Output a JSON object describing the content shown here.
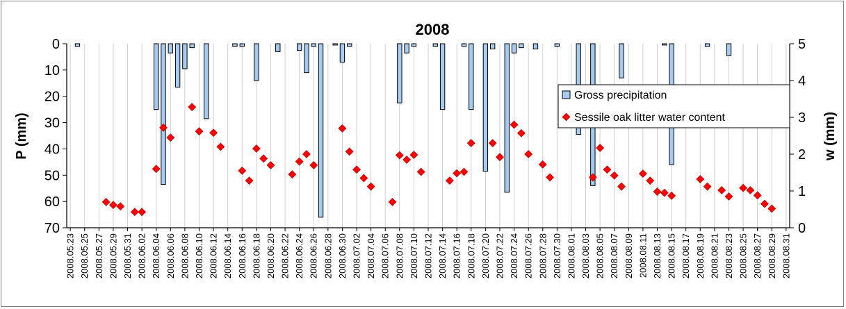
{
  "chart_data": {
    "type": "bar+scatter",
    "title": "2008",
    "left_axis": {
      "label": "P (mm)",
      "min": 0,
      "max": 70,
      "step": 10,
      "inverted": true
    },
    "right_axis": {
      "label": "w (mm)",
      "min": 0,
      "max": 5,
      "step": 1
    },
    "x_axis": {
      "type": "date",
      "start": "2008-05-23",
      "end": "2008-08-31",
      "tick_interval_days": 2
    },
    "legend": {
      "placement": "center-right"
    },
    "grid": {
      "vertical": true,
      "horizontal": false
    },
    "colors": {
      "bars": "#a6caf0",
      "bar_outline": "#000000",
      "markers": "#ff0000",
      "grid": "#d0d0d0"
    },
    "series": [
      {
        "name": "Gross precipitation",
        "type": "bar",
        "axis": "left",
        "points": [
          [
            "2008-05-24",
            1
          ],
          [
            "2008-06-04",
            25
          ],
          [
            "2008-06-05",
            53.5
          ],
          [
            "2008-06-06",
            3.5
          ],
          [
            "2008-06-07",
            16.5
          ],
          [
            "2008-06-08",
            9.5
          ],
          [
            "2008-06-09",
            1.5
          ],
          [
            "2008-06-11",
            28.5
          ],
          [
            "2008-06-15",
            1
          ],
          [
            "2008-06-16",
            1
          ],
          [
            "2008-06-18",
            14
          ],
          [
            "2008-06-21",
            3
          ],
          [
            "2008-06-24",
            2.5
          ],
          [
            "2008-06-25",
            11
          ],
          [
            "2008-06-26",
            1
          ],
          [
            "2008-06-27",
            66
          ],
          [
            "2008-06-29",
            0.5
          ],
          [
            "2008-06-30",
            7
          ],
          [
            "2008-07-01",
            1
          ],
          [
            "2008-07-08",
            22.5
          ],
          [
            "2008-07-09",
            3.5
          ],
          [
            "2008-07-10",
            1
          ],
          [
            "2008-07-13",
            1
          ],
          [
            "2008-07-14",
            25
          ],
          [
            "2008-07-17",
            1
          ],
          [
            "2008-07-18",
            25
          ],
          [
            "2008-07-20",
            48.5
          ],
          [
            "2008-07-21",
            2
          ],
          [
            "2008-07-23",
            56.5
          ],
          [
            "2008-07-24",
            3.5
          ],
          [
            "2008-07-25",
            1.5
          ],
          [
            "2008-07-27",
            2
          ],
          [
            "2008-07-30",
            1
          ],
          [
            "2008-08-02",
            34.5
          ],
          [
            "2008-08-04",
            54
          ],
          [
            "2008-08-08",
            13
          ],
          [
            "2008-08-14",
            0.5
          ],
          [
            "2008-08-15",
            46
          ],
          [
            "2008-08-20",
            1
          ],
          [
            "2008-08-23",
            4.5
          ]
        ]
      },
      {
        "name": "Sessile oak litter water content",
        "type": "scatter",
        "axis": "right",
        "points": [
          [
            "2008-05-28",
            0.7
          ],
          [
            "2008-05-29",
            0.62
          ],
          [
            "2008-05-30",
            0.58
          ],
          [
            "2008-06-01",
            0.43
          ],
          [
            "2008-06-02",
            0.43
          ],
          [
            "2008-06-04",
            1.6
          ],
          [
            "2008-06-05",
            2.72
          ],
          [
            "2008-06-06",
            2.45
          ],
          [
            "2008-06-09",
            3.28
          ],
          [
            "2008-06-10",
            2.62
          ],
          [
            "2008-06-12",
            2.58
          ],
          [
            "2008-06-13",
            2.2
          ],
          [
            "2008-06-16",
            1.55
          ],
          [
            "2008-06-17",
            1.28
          ],
          [
            "2008-06-18",
            2.15
          ],
          [
            "2008-06-19",
            1.88
          ],
          [
            "2008-06-20",
            1.7
          ],
          [
            "2008-06-23",
            1.45
          ],
          [
            "2008-06-24",
            1.8
          ],
          [
            "2008-06-25",
            2.0
          ],
          [
            "2008-06-26",
            1.7
          ],
          [
            "2008-06-30",
            2.7
          ],
          [
            "2008-07-01",
            2.07
          ],
          [
            "2008-07-02",
            1.58
          ],
          [
            "2008-07-03",
            1.35
          ],
          [
            "2008-07-04",
            1.12
          ],
          [
            "2008-07-07",
            0.7
          ],
          [
            "2008-07-08",
            1.97
          ],
          [
            "2008-07-09",
            1.85
          ],
          [
            "2008-07-10",
            1.98
          ],
          [
            "2008-07-11",
            1.52
          ],
          [
            "2008-07-15",
            1.28
          ],
          [
            "2008-07-16",
            1.48
          ],
          [
            "2008-07-17",
            1.52
          ],
          [
            "2008-07-18",
            2.3
          ],
          [
            "2008-07-21",
            2.3
          ],
          [
            "2008-07-22",
            1.92
          ],
          [
            "2008-07-24",
            2.8
          ],
          [
            "2008-07-25",
            2.57
          ],
          [
            "2008-07-26",
            2.0
          ],
          [
            "2008-07-28",
            1.72
          ],
          [
            "2008-07-29",
            1.37
          ],
          [
            "2008-08-04",
            1.37
          ],
          [
            "2008-08-05",
            2.17
          ],
          [
            "2008-08-06",
            1.58
          ],
          [
            "2008-08-07",
            1.42
          ],
          [
            "2008-08-08",
            1.12
          ],
          [
            "2008-08-11",
            1.47
          ],
          [
            "2008-08-12",
            1.28
          ],
          [
            "2008-08-13",
            0.98
          ],
          [
            "2008-08-14",
            0.95
          ],
          [
            "2008-08-15",
            0.87
          ],
          [
            "2008-08-19",
            1.32
          ],
          [
            "2008-08-20",
            1.12
          ],
          [
            "2008-08-22",
            1.02
          ],
          [
            "2008-08-23",
            0.85
          ],
          [
            "2008-08-25",
            1.08
          ],
          [
            "2008-08-26",
            1.02
          ],
          [
            "2008-08-27",
            0.88
          ],
          [
            "2008-08-28",
            0.65
          ],
          [
            "2008-08-29",
            0.52
          ]
        ]
      }
    ]
  }
}
